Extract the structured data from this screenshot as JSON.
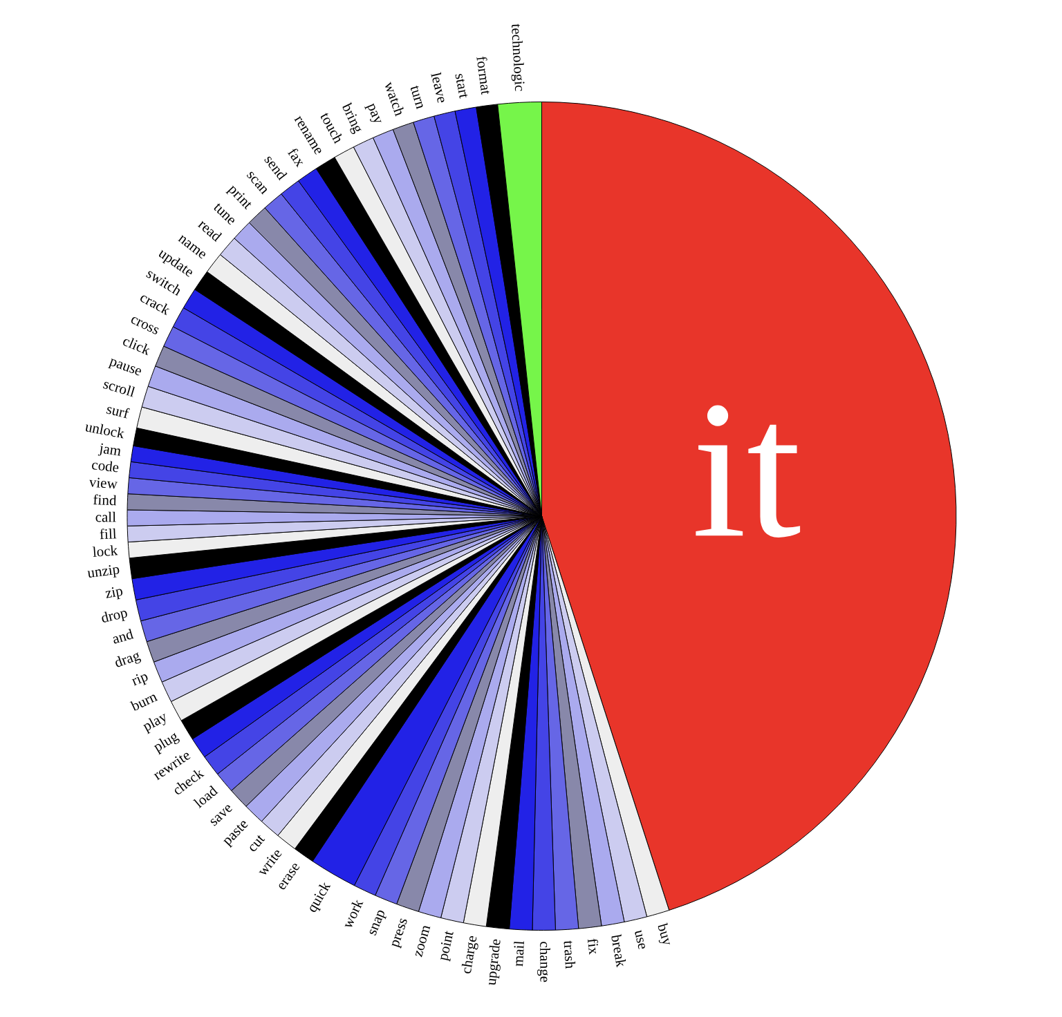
{
  "chart_data": {
    "type": "pie",
    "categories": [
      "it",
      "buy",
      "use",
      "break",
      "fix",
      "trash",
      "change",
      "mail",
      "upgrade",
      "charge",
      "point",
      "zoom",
      "press",
      "snap",
      "work",
      "quick",
      "erase",
      "write",
      "cut",
      "paste",
      "save",
      "load",
      "check",
      "rewrite",
      "plug",
      "play",
      "burn",
      "rip",
      "drag",
      "and",
      "drop",
      "zip",
      "unzip",
      "lock",
      "fill",
      "call",
      "find",
      "view",
      "code",
      "jam",
      "unlock",
      "surf",
      "scroll",
      "pause",
      "click",
      "cross",
      "crack",
      "switch",
      "update",
      "name",
      "read",
      "tune",
      "print",
      "scan",
      "send",
      "fax",
      "rename",
      "touch",
      "bring",
      "pay",
      "watch",
      "turn",
      "leave",
      "start",
      "format",
      "technologic"
    ],
    "values": [
      45.1,
      0.89,
      0.89,
      0.89,
      0.89,
      0.89,
      0.89,
      0.89,
      0.89,
      0.89,
      0.89,
      0.89,
      0.89,
      0.89,
      0.89,
      1.86,
      0.83,
      0.83,
      0.83,
      0.83,
      0.83,
      0.83,
      0.83,
      0.83,
      0.83,
      0.83,
      0.83,
      0.83,
      0.83,
      0.83,
      0.83,
      0.83,
      0.8,
      0.62,
      0.62,
      0.62,
      0.62,
      0.62,
      0.62,
      0.62,
      0.7,
      0.83,
      0.83,
      0.83,
      0.83,
      0.83,
      0.83,
      0.83,
      0.83,
      0.83,
      0.83,
      0.83,
      0.83,
      0.83,
      0.83,
      0.83,
      0.83,
      0.83,
      0.83,
      0.83,
      0.83,
      0.83,
      0.83,
      0.83,
      0.83,
      1.7
    ],
    "colors": [
      "#e8352a",
      "#eeeeee",
      "#ccccf0",
      "#aaaaee",
      "#8888aa",
      "#6666e6",
      "#4444e6",
      "#2222e6",
      "#000000",
      "#eeeeee",
      "#ccccf0",
      "#aaaaee",
      "#8888aa",
      "#6666e6",
      "#4444e6",
      "#2222e6",
      "#000000",
      "#eeeeee",
      "#ccccf0",
      "#aaaaee",
      "#8888aa",
      "#6666e6",
      "#4444e6",
      "#2222e6",
      "#000000",
      "#eeeeee",
      "#ccccf0",
      "#aaaaee",
      "#8888aa",
      "#6666e6",
      "#4444e6",
      "#2222e6",
      "#000000",
      "#eeeeee",
      "#ccccf0",
      "#aaaaee",
      "#8888aa",
      "#6666e6",
      "#4444e6",
      "#2222e6",
      "#000000",
      "#eeeeee",
      "#ccccf0",
      "#aaaaee",
      "#8888aa",
      "#6666e6",
      "#4444e6",
      "#2222e6",
      "#000000",
      "#eeeeee",
      "#ccccf0",
      "#aaaaee",
      "#8888aa",
      "#6666e6",
      "#4444e6",
      "#2222e6",
      "#000000",
      "#eeeeee",
      "#ccccf0",
      "#aaaaee",
      "#8888aa",
      "#6666e6",
      "#4444e6",
      "#2222e6",
      "#000000",
      "#76f54a"
    ]
  }
}
